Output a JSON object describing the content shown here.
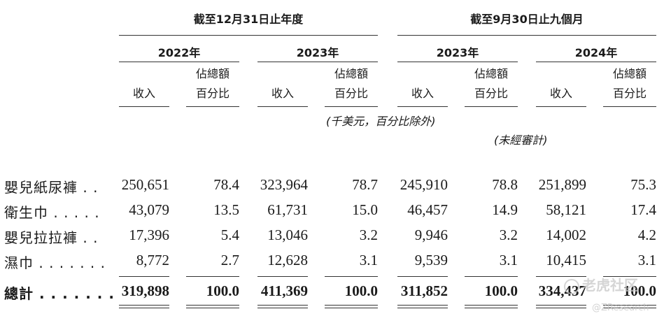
{
  "period_headers": {
    "full_year": "截至12月31日止年度",
    "nine_months": "截至9月30日止九個月"
  },
  "years": [
    "2022年",
    "2023年",
    "2023年",
    "2024年"
  ],
  "col_labels": {
    "revenue": "收入",
    "pct_line1": "佔總額",
    "pct_line2": "百分比"
  },
  "notes": {
    "units": "(千美元，百分比除外)",
    "unaudited": "(未經審計)"
  },
  "rows": [
    {
      "label": "嬰兒紙尿褲 . .",
      "values": [
        "250,651",
        "78.4",
        "323,964",
        "78.7",
        "245,910",
        "78.8",
        "251,899",
        "75.3"
      ]
    },
    {
      "label": "衛生巾 . . . . .",
      "values": [
        "43,079",
        "13.5",
        "61,731",
        "15.0",
        "46,457",
        "14.9",
        "58,121",
        "17.4"
      ]
    },
    {
      "label": "嬰兒拉拉褲 . .",
      "values": [
        "17,396",
        "5.4",
        "13,046",
        "3.2",
        "9,946",
        "3.2",
        "14,002",
        "4.2"
      ]
    },
    {
      "label": "濕巾 . . . . . . .",
      "values": [
        "8,772",
        "2.7",
        "12,628",
        "3.1",
        "9,539",
        "3.1",
        "10,415",
        "3.1"
      ]
    }
  ],
  "total": {
    "label": "總計 . . . . . . .",
    "values": [
      "319,898",
      "100.0",
      "411,369",
      "100.0",
      "311,852",
      "100.0",
      "334,437",
      "100.0"
    ]
  },
  "watermark": {
    "line1": "老虎社区",
    "line2": "@ZResearch"
  }
}
